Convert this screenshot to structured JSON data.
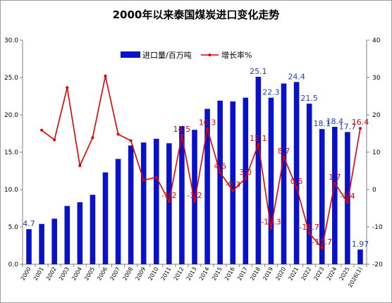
{
  "chart_data": {
    "type": "bar",
    "title": "2000年以来泰国煤炭进口变化走势",
    "categories": [
      "2000",
      "2001",
      "2002",
      "2003",
      "2004",
      "2005",
      "2006",
      "2007",
      "2008",
      "2009",
      "2010",
      "2011",
      "2012",
      "2013",
      "2014",
      "2015",
      "2016",
      "2017",
      "2018",
      "2019",
      "2020",
      "2021",
      "2022",
      "2023",
      "2024",
      "2025",
      "2026(1)"
    ],
    "series": [
      {
        "name": "进口量/百万吨",
        "type": "bar",
        "axis": "left",
        "color": "#0a12c8",
        "values": [
          4.7,
          5.4,
          6.1,
          7.8,
          8.3,
          9.3,
          12.3,
          14.1,
          15.9,
          16.3,
          16.8,
          16.2,
          18.5,
          18.0,
          20.8,
          21.9,
          21.8,
          22.3,
          25.1,
          22.3,
          24.2,
          24.4,
          21.5,
          18.1,
          18.4,
          17.7,
          1.97
        ],
        "labels": [
          "4.7",
          "",
          "",
          "",
          "",
          "",
          "",
          "",
          "",
          "",
          "",
          "",
          "",
          "",
          "",
          "",
          "",
          "",
          "25.1",
          "22.3",
          "",
          "24.4",
          "21.5",
          "18.1",
          "18.4",
          "17.7",
          "1.97"
        ]
      },
      {
        "name": "增长率%",
        "type": "line",
        "axis": "right",
        "color": "#e00000",
        "values": [
          null,
          15.9,
          13.3,
          27.3,
          6.4,
          13.9,
          30.4,
          14.8,
          13.1,
          2.5,
          3.3,
          -3.2,
          14.5,
          -3.2,
          16.3,
          4.6,
          -0.3,
          3.0,
          12.1,
          -10.3,
          8.7,
          0.6,
          -11.7,
          -15.7,
          1.7,
          -3.4,
          16.4
        ],
        "labels": [
          "",
          "",
          "",
          "",
          "",
          "",
          "",
          "",
          "",
          "",
          "",
          "-3.2",
          "14.5",
          "-3.2",
          "16.3",
          "4.6",
          "-0.3",
          "3.0",
          "12.1",
          "-10.3",
          "8.7",
          "0.6",
          "-11.7",
          "-15.7",
          "1.7",
          "-3.4",
          "16.4"
        ]
      }
    ],
    "ylim_left": [
      0,
      30
    ],
    "yticks_left": [
      "0.0",
      "5.0",
      "10.0",
      "15.0",
      "20.0",
      "25.0",
      "30.0"
    ],
    "ylim_right": [
      -20,
      40
    ],
    "yticks_right": [
      "-20",
      "-10",
      "0",
      "10",
      "20",
      "30",
      "40"
    ],
    "legend": "top-center",
    "grid": false
  }
}
